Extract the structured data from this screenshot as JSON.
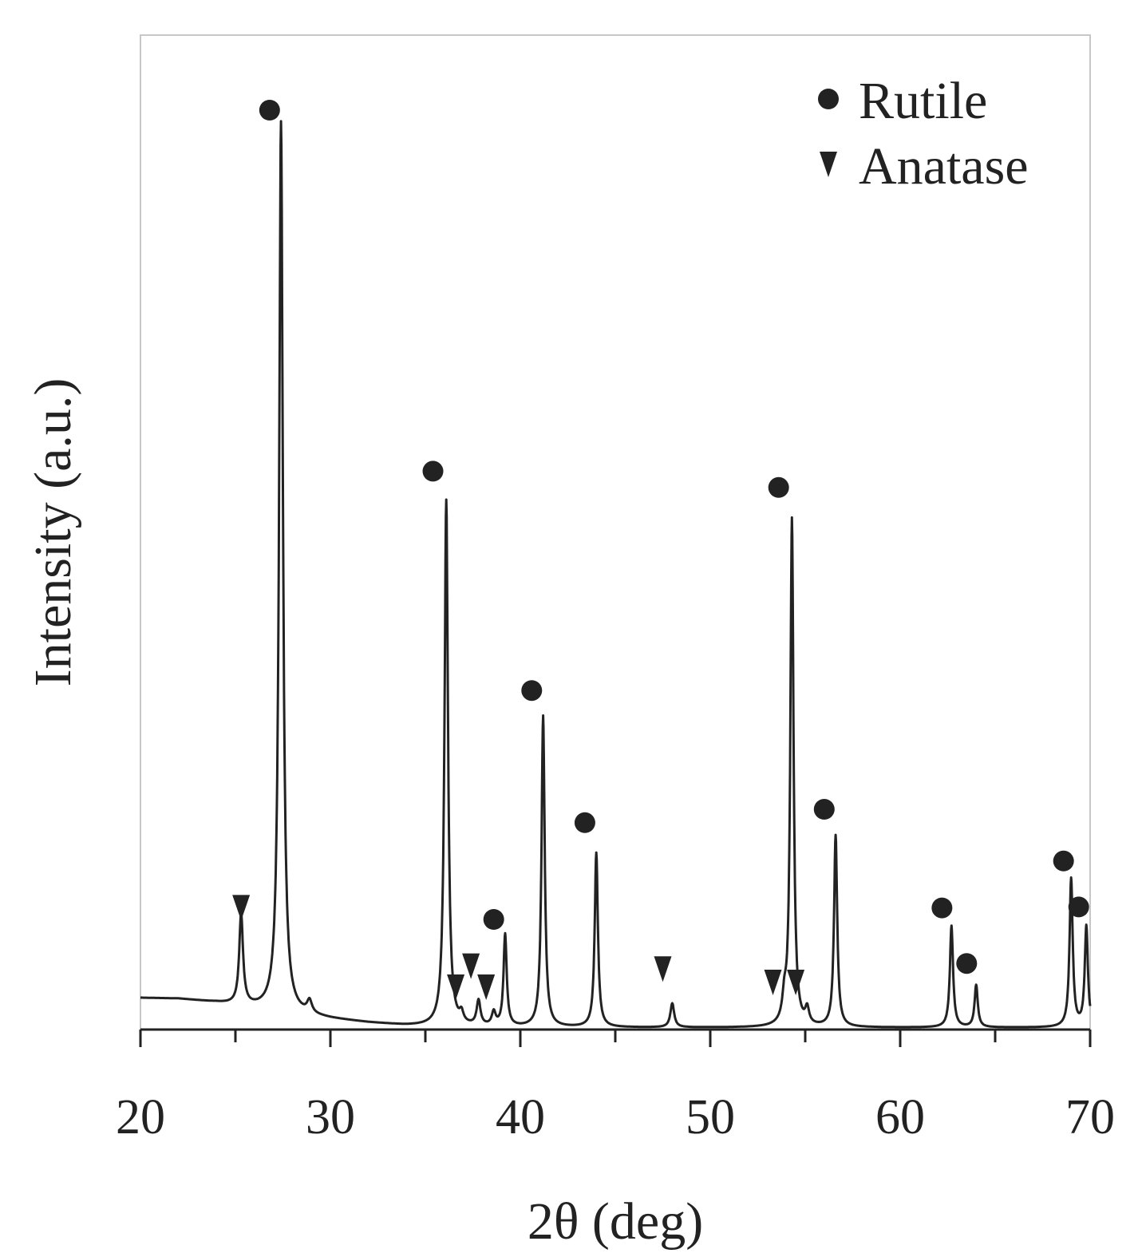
{
  "chart_data": {
    "type": "line",
    "title": "",
    "xlabel": "2θ (deg)",
    "ylabel": "Intensity (a.u.)",
    "xlim": [
      20,
      70
    ],
    "ylim": [
      0,
      100
    ],
    "xticks": [
      20,
      30,
      40,
      50,
      60,
      70
    ],
    "xtick_labels": [
      "20",
      "30",
      "40",
      "50",
      "60",
      "70"
    ],
    "minor_xtick_step": 5,
    "grid": false,
    "legend_position": "top-right",
    "legend": [
      {
        "name": "Rutile",
        "marker": "circle"
      },
      {
        "name": "Anatase",
        "marker": "triangle-down"
      }
    ],
    "line_color": "#222222",
    "baseline": [
      [
        20.0,
        3.3
      ],
      [
        22.0,
        3.2
      ],
      [
        24.0,
        2.8
      ],
      [
        26.0,
        2.2
      ],
      [
        28.0,
        1.6
      ],
      [
        30.0,
        1.1
      ],
      [
        32.0,
        0.7
      ],
      [
        34.0,
        0.4
      ],
      [
        36.0,
        0.25
      ],
      [
        40.0,
        0.2
      ],
      [
        50.0,
        0.2
      ],
      [
        60.0,
        0.2
      ],
      [
        70.0,
        0.2
      ]
    ],
    "peaks": [
      {
        "x": 25.3,
        "y": 9.5,
        "phase": "Anatase",
        "width": 0.12
      },
      {
        "x": 27.4,
        "y": 93.0,
        "phase": "Rutile",
        "width": 0.12
      },
      {
        "x": 28.9,
        "y": 1.3,
        "phase": "",
        "width": 0.15
      },
      {
        "x": 36.1,
        "y": 55.0,
        "phase": "Rutile",
        "width": 0.11
      },
      {
        "x": 36.9,
        "y": 1.0,
        "phase": "Anatase",
        "width": 0.12
      },
      {
        "x": 37.8,
        "y": 2.6,
        "phase": "Anatase",
        "width": 0.12
      },
      {
        "x": 38.6,
        "y": 1.4,
        "phase": "Anatase",
        "width": 0.12
      },
      {
        "x": 39.2,
        "y": 9.6,
        "phase": "Rutile",
        "width": 0.1
      },
      {
        "x": 41.2,
        "y": 32.5,
        "phase": "Rutile",
        "width": 0.1
      },
      {
        "x": 44.0,
        "y": 18.2,
        "phase": "Rutile",
        "width": 0.1
      },
      {
        "x": 48.0,
        "y": 2.5,
        "phase": "Anatase",
        "width": 0.12
      },
      {
        "x": 53.9,
        "y": 2.2,
        "phase": "Anatase",
        "width": 0.12
      },
      {
        "x": 54.3,
        "y": 53.0,
        "phase": "Rutile",
        "width": 0.1
      },
      {
        "x": 55.1,
        "y": 1.6,
        "phase": "Anatase",
        "width": 0.12
      },
      {
        "x": 56.6,
        "y": 20.0,
        "phase": "Rutile",
        "width": 0.1
      },
      {
        "x": 62.7,
        "y": 10.6,
        "phase": "Rutile",
        "width": 0.1
      },
      {
        "x": 64.0,
        "y": 4.4,
        "phase": "Rutile",
        "width": 0.1
      },
      {
        "x": 69.0,
        "y": 15.5,
        "phase": "Rutile",
        "width": 0.1
      },
      {
        "x": 69.8,
        "y": 10.5,
        "phase": "Rutile",
        "width": 0.1
      }
    ],
    "markers": [
      {
        "x": 25.3,
        "y": 12.8,
        "phase": "Anatase"
      },
      {
        "x": 26.8,
        "y": 96.0,
        "phase": "Rutile"
      },
      {
        "x": 35.4,
        "y": 58.3,
        "phase": "Rutile"
      },
      {
        "x": 36.6,
        "y": 4.5,
        "phase": "Anatase"
      },
      {
        "x": 37.4,
        "y": 6.7,
        "phase": "Anatase"
      },
      {
        "x": 38.2,
        "y": 4.5,
        "phase": "Anatase"
      },
      {
        "x": 38.6,
        "y": 11.5,
        "phase": "Rutile"
      },
      {
        "x": 40.6,
        "y": 35.4,
        "phase": "Rutile"
      },
      {
        "x": 43.4,
        "y": 21.6,
        "phase": "Rutile"
      },
      {
        "x": 47.5,
        "y": 6.4,
        "phase": "Anatase"
      },
      {
        "x": 53.3,
        "y": 5.0,
        "phase": "Anatase"
      },
      {
        "x": 53.6,
        "y": 56.6,
        "phase": "Rutile"
      },
      {
        "x": 54.5,
        "y": 5.0,
        "phase": "Anatase"
      },
      {
        "x": 56.0,
        "y": 23.0,
        "phase": "Rutile"
      },
      {
        "x": 62.2,
        "y": 12.7,
        "phase": "Rutile"
      },
      {
        "x": 63.5,
        "y": 6.9,
        "phase": "Rutile"
      },
      {
        "x": 68.6,
        "y": 17.6,
        "phase": "Rutile"
      },
      {
        "x": 69.4,
        "y": 12.8,
        "phase": "Rutile"
      }
    ]
  }
}
